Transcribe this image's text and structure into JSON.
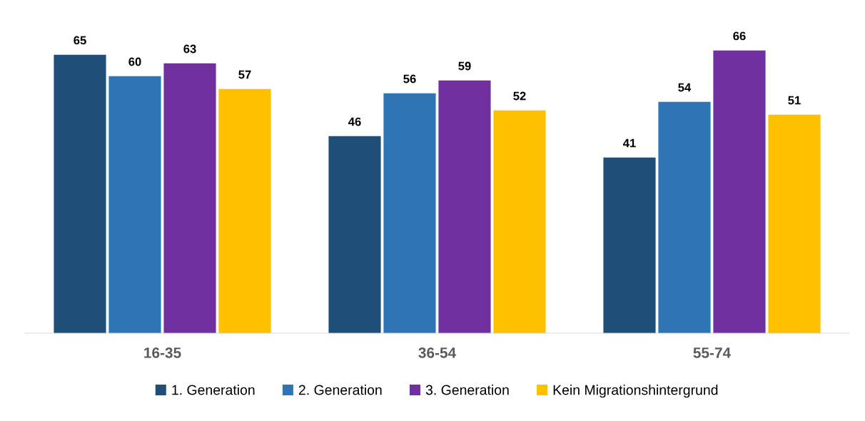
{
  "chart_data": {
    "type": "bar",
    "categories": [
      "16-35",
      "36-54",
      "55-74"
    ],
    "series": [
      {
        "name": "1. Generation",
        "color": "#1f4e79",
        "values": [
          65,
          46,
          41
        ]
      },
      {
        "name": "2. Generation",
        "color": "#2e75b6",
        "values": [
          60,
          56,
          54
        ]
      },
      {
        "name": "3. Generation",
        "color": "#7030a0",
        "values": [
          63,
          59,
          66
        ]
      },
      {
        "name": "Kein Migrationshintergrund",
        "color": "#ffc000",
        "values": [
          57,
          52,
          51
        ]
      }
    ],
    "data_labels": true,
    "grid": false,
    "legend": "bottom",
    "tick_labels": "x"
  }
}
